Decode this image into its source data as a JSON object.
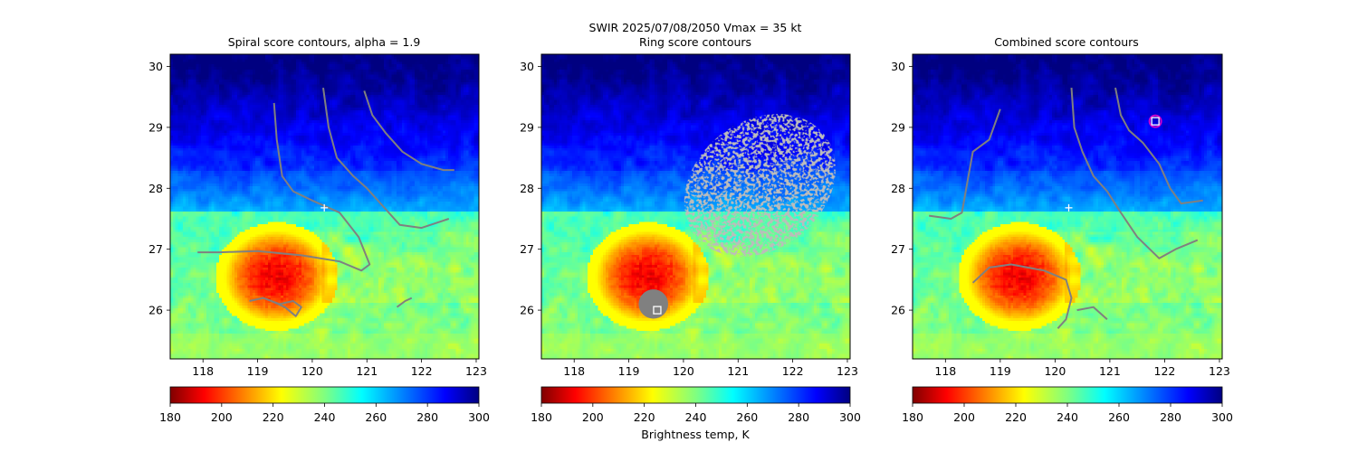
{
  "suptitle_line": "SWIR  2025/07/08/2050    Vmax = 35 kt",
  "panels": [
    {
      "title": "Spiral score contours, alpha =  1.9"
    },
    {
      "title": "Ring score contours"
    },
    {
      "title": "Combined score contours"
    }
  ],
  "colorbar": {
    "label": "Brightness temp, K",
    "cmap": "jet_r",
    "min": 180,
    "max": 300,
    "ticks": [
      180,
      200,
      220,
      240,
      260,
      280,
      300
    ]
  },
  "colors": {
    "contour": "#808080",
    "marker": "#ffffff",
    "target": "#cc00cc"
  },
  "chart_data": [
    {
      "type": "heatmap",
      "title": "Spiral score contours, alpha =  1.9",
      "xlim": [
        117.4,
        123.05
      ],
      "ylim": [
        25.2,
        30.2
      ],
      "xticks": [
        118,
        119,
        120,
        121,
        122,
        123
      ],
      "yticks": [
        26,
        27,
        28,
        29,
        30
      ],
      "value_label": "Brightness temp, K",
      "contours": [
        [
          [
            119.3,
            29.4
          ],
          [
            119.35,
            28.8
          ],
          [
            119.45,
            28.2
          ],
          [
            119.65,
            27.95
          ],
          [
            120.0,
            27.8
          ],
          [
            120.5,
            27.6
          ],
          [
            120.85,
            27.2
          ],
          [
            121.05,
            26.75
          ],
          [
            120.9,
            26.65
          ],
          [
            120.5,
            26.8
          ],
          [
            119.8,
            26.9
          ],
          [
            119.0,
            26.97
          ],
          [
            118.3,
            26.95
          ],
          [
            117.9,
            26.95
          ]
        ],
        [
          [
            120.2,
            29.65
          ],
          [
            120.3,
            29.0
          ],
          [
            120.45,
            28.5
          ],
          [
            120.75,
            28.2
          ],
          [
            121.0,
            28.0
          ],
          [
            121.3,
            27.7
          ],
          [
            121.6,
            27.4
          ],
          [
            122.0,
            27.35
          ],
          [
            122.5,
            27.5
          ]
        ],
        [
          [
            120.95,
            29.6
          ],
          [
            121.1,
            29.2
          ],
          [
            121.35,
            28.9
          ],
          [
            121.65,
            28.6
          ],
          [
            122.0,
            28.4
          ],
          [
            122.4,
            28.3
          ],
          [
            122.6,
            28.3
          ]
        ],
        [
          [
            118.85,
            26.15
          ],
          [
            119.1,
            26.2
          ],
          [
            119.4,
            26.1
          ],
          [
            119.65,
            26.15
          ],
          [
            119.8,
            26.05
          ],
          [
            119.7,
            25.9
          ],
          [
            119.5,
            26.05
          ],
          [
            119.25,
            26.15
          ]
        ],
        [
          [
            121.55,
            26.05
          ],
          [
            121.7,
            26.15
          ],
          [
            121.82,
            26.2
          ]
        ]
      ],
      "markers": [
        {
          "shape": "plus",
          "x": 120.22,
          "y": 27.68
        }
      ]
    },
    {
      "type": "heatmap",
      "title": "Ring score contours",
      "xlim": [
        117.4,
        123.05
      ],
      "ylim": [
        25.2,
        30.2
      ],
      "xticks": [
        118,
        119,
        120,
        121,
        122,
        123
      ],
      "yticks": [
        26,
        27,
        28,
        29,
        30
      ],
      "value_label": "Brightness temp, K",
      "contour_regions": [
        {
          "shape": "ellipse",
          "cx": 121.4,
          "cy": 28.05,
          "rx": 1.5,
          "ry": 1.05,
          "rotate": -38
        },
        {
          "shape": "ellipse",
          "cx": 119.45,
          "cy": 26.1,
          "rx": 0.27,
          "ry": 0.24,
          "rotate": 0
        }
      ],
      "markers": [
        {
          "shape": "square",
          "x": 119.52,
          "y": 26.0
        }
      ]
    },
    {
      "type": "heatmap",
      "title": "Combined score contours",
      "xlim": [
        117.4,
        123.05
      ],
      "ylim": [
        25.2,
        30.2
      ],
      "xticks": [
        118,
        119,
        120,
        121,
        122,
        123
      ],
      "yticks": [
        26,
        27,
        28,
        29,
        30
      ],
      "value_label": "Brightness temp, K",
      "contours": [
        [
          [
            119.0,
            29.3
          ],
          [
            118.8,
            28.8
          ],
          [
            118.5,
            28.6
          ],
          [
            118.4,
            28.1
          ],
          [
            118.3,
            27.6
          ],
          [
            118.1,
            27.5
          ],
          [
            117.7,
            27.55
          ]
        ],
        [
          [
            120.3,
            29.65
          ],
          [
            120.35,
            29.0
          ],
          [
            120.5,
            28.6
          ],
          [
            120.7,
            28.2
          ],
          [
            120.95,
            27.95
          ],
          [
            121.2,
            27.6
          ],
          [
            121.5,
            27.2
          ],
          [
            121.9,
            26.85
          ],
          [
            122.2,
            27.0
          ],
          [
            122.6,
            27.15
          ]
        ],
        [
          [
            121.1,
            29.65
          ],
          [
            121.2,
            29.2
          ],
          [
            121.35,
            28.95
          ],
          [
            121.6,
            28.75
          ],
          [
            121.9,
            28.4
          ],
          [
            122.1,
            28.0
          ],
          [
            122.3,
            27.75
          ],
          [
            122.7,
            27.8
          ]
        ],
        [
          [
            118.5,
            26.45
          ],
          [
            118.8,
            26.7
          ],
          [
            119.2,
            26.75
          ],
          [
            119.8,
            26.65
          ],
          [
            120.2,
            26.5
          ],
          [
            120.3,
            26.2
          ],
          [
            120.2,
            25.85
          ],
          [
            120.05,
            25.7
          ]
        ],
        [
          [
            120.4,
            26.0
          ],
          [
            120.7,
            26.05
          ],
          [
            120.95,
            25.85
          ]
        ]
      ],
      "markers": [
        {
          "shape": "plus",
          "x": 120.25,
          "y": 27.68
        },
        {
          "shape": "square",
          "x": 121.83,
          "y": 29.1
        }
      ]
    }
  ]
}
